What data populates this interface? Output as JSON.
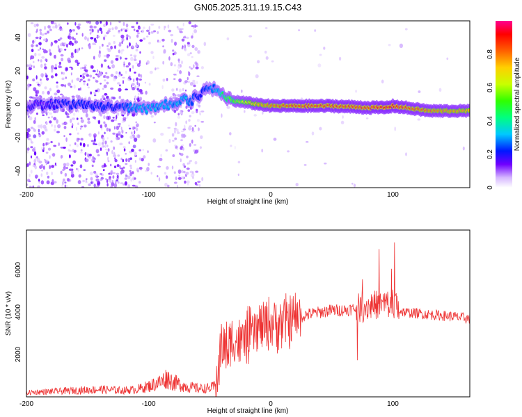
{
  "chart_data": [
    {
      "type": "heatmap",
      "title": "GN05.2025.311.19.15.C43",
      "xlabel": "Height of straight line (km)",
      "ylabel": "Frequency (Hz)",
      "xlim": [
        -200,
        163
      ],
      "ylim": [
        -50,
        50
      ],
      "xticks": [
        -200,
        -100,
        0,
        100
      ],
      "yticks": [
        -40,
        -20,
        0,
        20,
        40
      ],
      "ridge": {
        "x": [
          -200,
          -185,
          -170,
          -155,
          -140,
          -125,
          -110,
          -95,
          -80,
          -70,
          -65,
          -60,
          -55,
          -50,
          -45,
          -42,
          -38,
          -30,
          -20,
          -10,
          0,
          20,
          50,
          80,
          95,
          100,
          110,
          130,
          163
        ],
        "freq": [
          -1,
          0,
          0,
          0,
          -1,
          -2,
          -3,
          -2,
          1,
          3,
          2,
          5,
          8,
          10,
          10,
          8,
          4,
          2,
          1,
          0,
          -1,
          -1,
          -1,
          -2,
          -2,
          -1,
          -2,
          -4,
          -4
        ],
        "amplitude": [
          0.15,
          0.15,
          0.2,
          0.2,
          0.2,
          0.2,
          0.3,
          0.3,
          0.3,
          0.3,
          0.25,
          0.2,
          0.2,
          0.25,
          0.3,
          0.35,
          0.45,
          0.55,
          0.65,
          0.75,
          0.8,
          0.85,
          0.85,
          0.85,
          0.9,
          0.9,
          0.85,
          0.8,
          0.75
        ]
      },
      "colorbar": {
        "label": "Normalized spectral amplitude",
        "range": [
          0,
          1
        ],
        "ticks": [
          0.0,
          0.2,
          0.4,
          0.6,
          0.8
        ]
      }
    },
    {
      "type": "line",
      "xlabel": "Height of straight line (km)",
      "ylabel": "SNR (10 * v/v)",
      "xlim": [
        -200,
        163
      ],
      "ylim": [
        0,
        7900
      ],
      "xticks": [
        -200,
        -100,
        0,
        100
      ],
      "yticks": [
        2000,
        4000,
        6000
      ],
      "color": "#ee3333",
      "series": [
        {
          "name": "SNR",
          "x": [
            -200,
            -180,
            -160,
            -140,
            -120,
            -110,
            -100,
            -90,
            -85,
            -80,
            -70,
            -60,
            -50,
            -45,
            -42,
            -40,
            -35,
            -30,
            -25,
            -20,
            -10,
            0,
            10,
            20,
            30,
            40,
            50,
            60,
            70,
            75,
            78,
            80,
            85,
            90,
            95,
            98,
            100,
            102,
            105,
            110,
            120,
            130,
            140,
            150,
            163
          ],
          "y": [
            200,
            250,
            300,
            350,
            300,
            350,
            500,
            700,
            900,
            700,
            500,
            400,
            400,
            500,
            1800,
            2500,
            2200,
            2800,
            2500,
            2800,
            3200,
            3500,
            3500,
            3700,
            3900,
            4000,
            4100,
            4100,
            4200,
            4200,
            4300,
            4300,
            4350,
            4400,
            4400,
            4400,
            4500,
            4300,
            4100,
            4000,
            3950,
            3900,
            3850,
            3800,
            3700
          ]
        }
      ]
    }
  ]
}
